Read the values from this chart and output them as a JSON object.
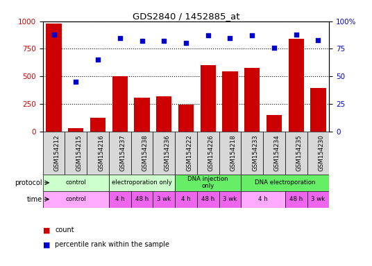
{
  "title": "GDS2840 / 1452885_at",
  "categories": [
    "GSM154212",
    "GSM154215",
    "GSM154216",
    "GSM154237",
    "GSM154238",
    "GSM154236",
    "GSM154222",
    "GSM154226",
    "GSM154218",
    "GSM154233",
    "GSM154234",
    "GSM154235",
    "GSM154230"
  ],
  "bar_values": [
    980,
    30,
    120,
    500,
    305,
    315,
    240,
    600,
    545,
    575,
    150,
    840,
    395
  ],
  "scatter_values": [
    88,
    45,
    65,
    85,
    82,
    82,
    80,
    87,
    85,
    87,
    76,
    88,
    83
  ],
  "bar_color": "#cc0000",
  "scatter_color": "#0000cc",
  "ylim_left": [
    0,
    1000
  ],
  "ylim_right": [
    0,
    100
  ],
  "yticks_left": [
    0,
    250,
    500,
    750,
    1000
  ],
  "yticks_right": [
    0,
    25,
    50,
    75,
    100
  ],
  "protocol_row": [
    {
      "label": "control",
      "start": 0,
      "end": 3,
      "color": "#ccffcc"
    },
    {
      "label": "electroporation only",
      "start": 3,
      "end": 6,
      "color": "#ccffcc"
    },
    {
      "label": "DNA injection\nonly",
      "start": 6,
      "end": 9,
      "color": "#66ee66"
    },
    {
      "label": "DNA electroporation",
      "start": 9,
      "end": 13,
      "color": "#66ee66"
    }
  ],
  "time_row": [
    {
      "label": "control",
      "start": 0,
      "end": 3,
      "color": "#ffaaff"
    },
    {
      "label": "4 h",
      "start": 3,
      "end": 4,
      "color": "#ee66ee"
    },
    {
      "label": "48 h",
      "start": 4,
      "end": 5,
      "color": "#ee66ee"
    },
    {
      "label": "3 wk",
      "start": 5,
      "end": 6,
      "color": "#ee66ee"
    },
    {
      "label": "4 h",
      "start": 6,
      "end": 7,
      "color": "#ee66ee"
    },
    {
      "label": "48 h",
      "start": 7,
      "end": 8,
      "color": "#ee66ee"
    },
    {
      "label": "3 wk",
      "start": 8,
      "end": 9,
      "color": "#ee66ee"
    },
    {
      "label": "4 h",
      "start": 9,
      "end": 11,
      "color": "#ffaaff"
    },
    {
      "label": "48 h",
      "start": 11,
      "end": 12,
      "color": "#ee66ee"
    },
    {
      "label": "3 wk",
      "start": 12,
      "end": 13,
      "color": "#ee66ee"
    }
  ],
  "legend_count_color": "#cc0000",
  "legend_scatter_color": "#0000cc"
}
